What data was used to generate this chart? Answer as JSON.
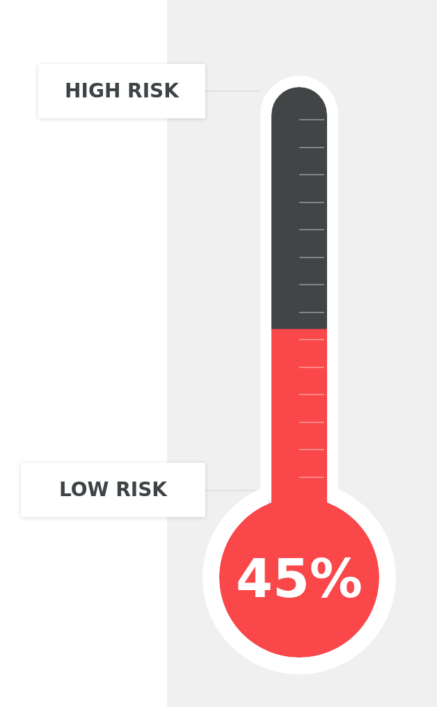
{
  "chart_data": {
    "type": "bar",
    "categories": [
      null
    ],
    "values": [
      45
    ],
    "color": "#f9474a",
    "value_labels": [
      "45%"
    ],
    "ylim": [
      0,
      100
    ],
    "tick_labels": false,
    "annotations": [
      "HIGH RISK",
      "LOW RISK"
    ]
  }
}
